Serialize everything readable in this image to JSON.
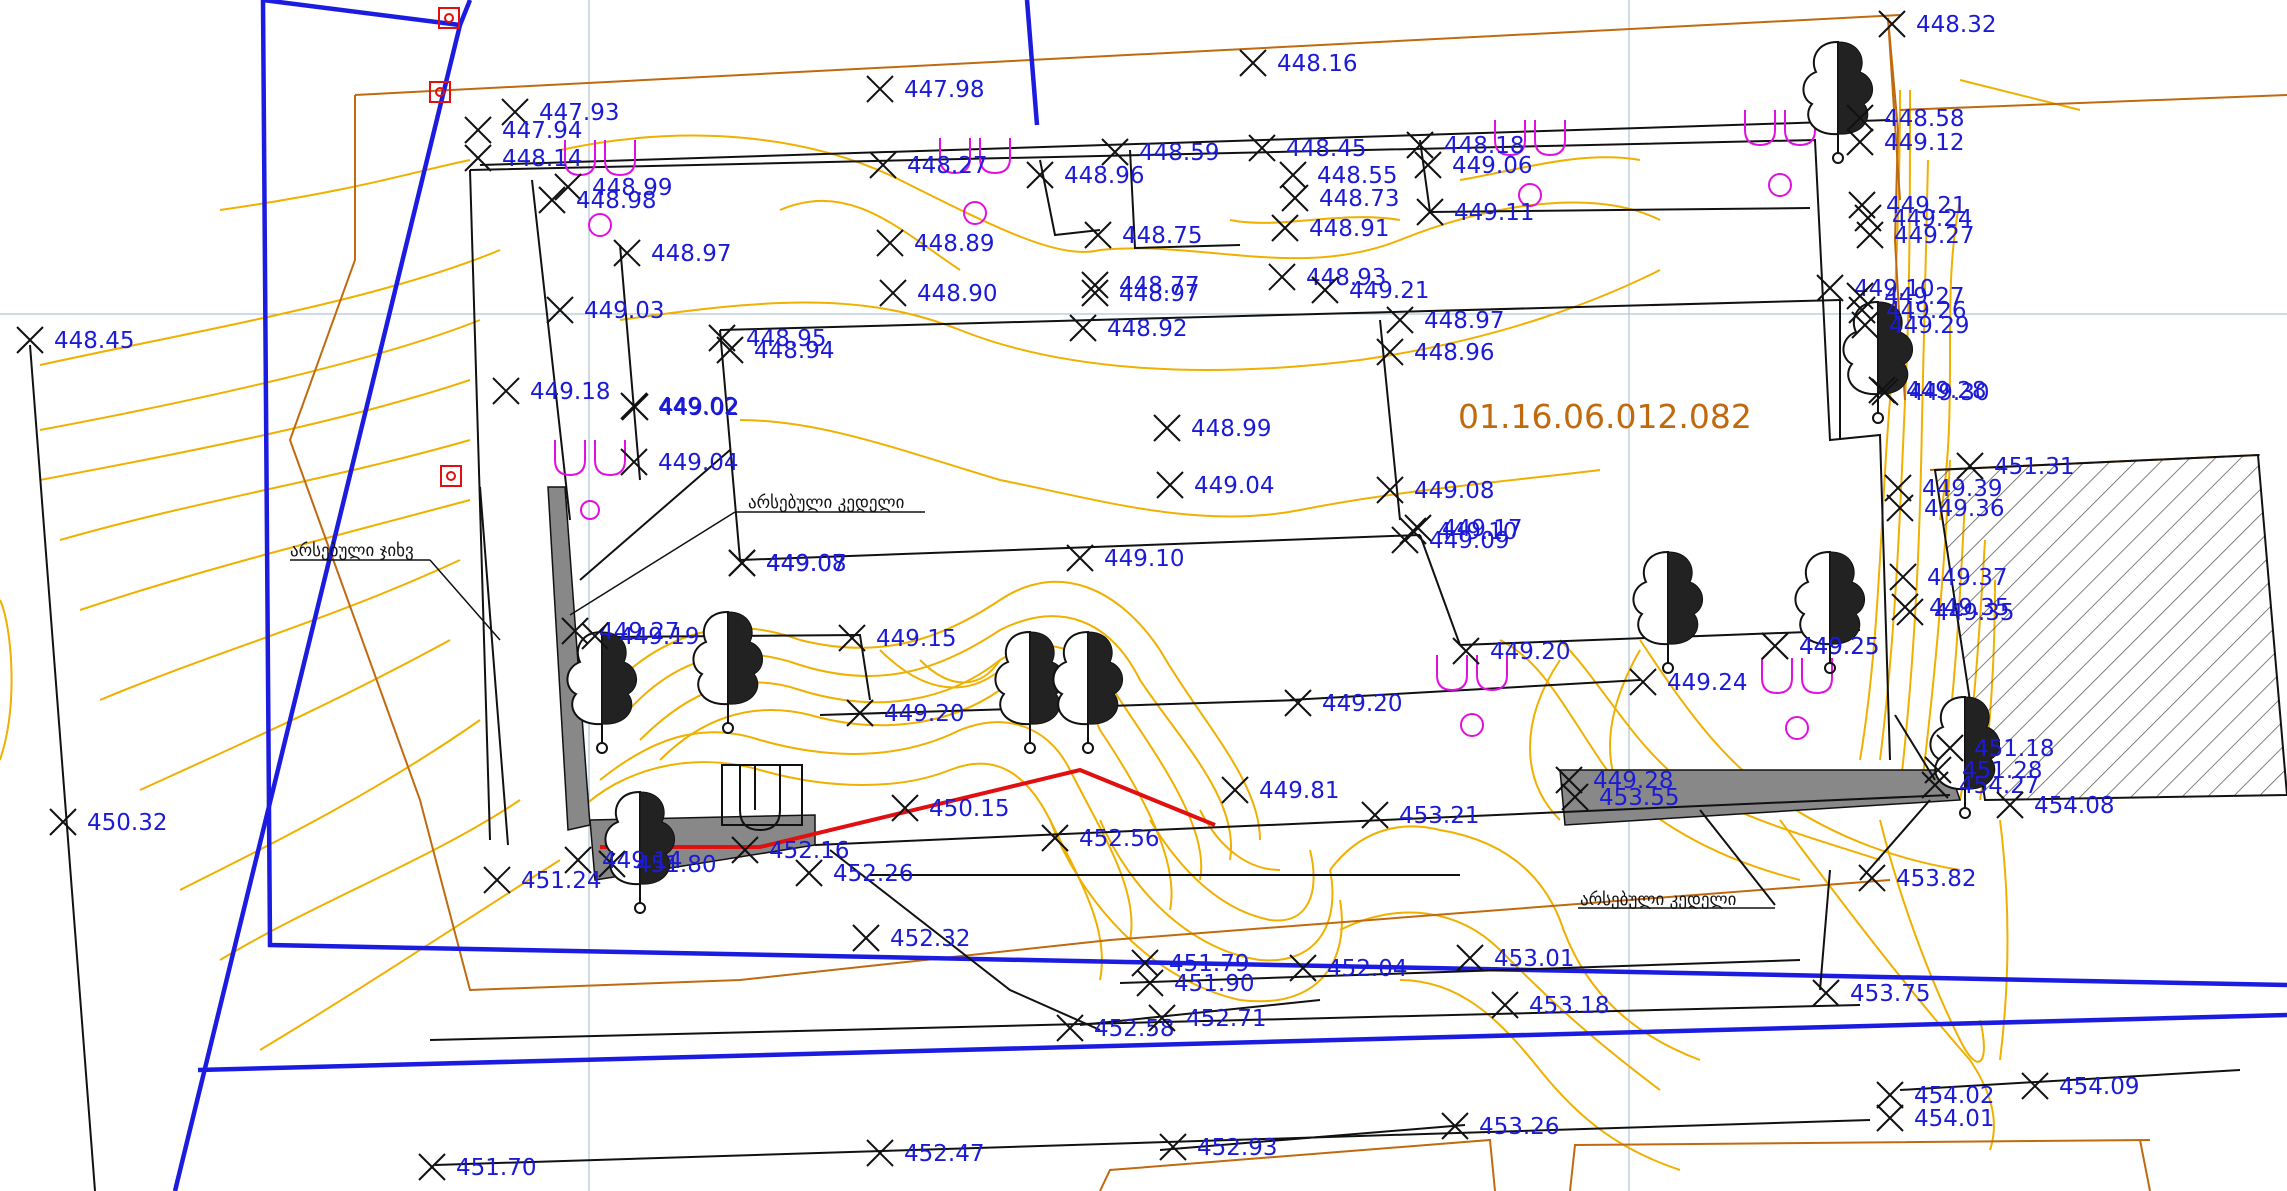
{
  "parcel_id": "01.16.06.012.082",
  "notes": {
    "fence_left": "არსებული ჯიხვ",
    "wall_top": "არსებული კედელი",
    "wall_bottom": "არსებული კედელი"
  },
  "elevation_points": [
    "448.32",
    "448.16",
    "447.98",
    "447.93",
    "447.94",
    "448.14",
    "448.99",
    "448.98",
    "448.27",
    "448.96",
    "448.59",
    "448.45",
    "448.18",
    "449.06",
    "448.58",
    "448.55",
    "448.73",
    "448.91",
    "448.75",
    "449.11",
    "449.12",
    "449.21",
    "449.24",
    "449.27",
    "448.89",
    "448.97",
    "448.77",
    "448.97",
    "448.93",
    "448.90",
    "449.02",
    "449.03",
    "448.95",
    "448.94",
    "448.92",
    "448.96",
    "448.97",
    "449.10",
    "449.27",
    "449.26",
    "449.29",
    "449.28",
    "449.30",
    "448.45",
    "449.18",
    "449.02",
    "449.04",
    "448.99",
    "449.04",
    "449.08",
    "449.17",
    "449.09",
    "449.10",
    "449.08",
    "449.07",
    "449.10",
    "451.31",
    "449.39",
    "449.36",
    "449.37",
    "449.35",
    "449.35",
    "449.27",
    "449.25",
    "449.15",
    "449.20",
    "449.20",
    "449.25",
    "449.24",
    "449.20",
    "451.18",
    "451.28",
    "454.27",
    "454.08",
    "449.81",
    "449.28",
    "453.55",
    "453.21",
    "450.15",
    "452.56",
    "452.16",
    "452.26",
    "451.24",
    "451.80",
    "450.32",
    "453.82",
    "452.32",
    "451.79",
    "451.90",
    "452.04",
    "453.01",
    "453.18",
    "453.75",
    "452.58",
    "452.71",
    "454.02",
    "454.09",
    "454.01",
    "453.26",
    "452.93",
    "452.47",
    "451.70",
    "449.14",
    "449.21",
    "449.19"
  ]
}
